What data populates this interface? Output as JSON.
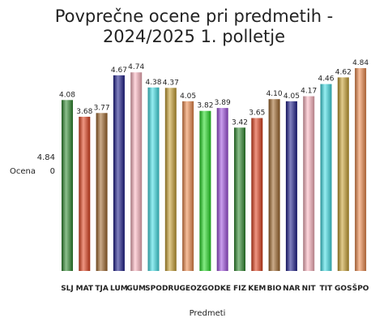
{
  "chart_data": {
    "type": "bar",
    "title_line1": "Povprečne ocene pri predmetih -",
    "title_line2": "2024/2025 1. polletje",
    "xlabel": "Predmeti",
    "ylabel": "Ocena",
    "y_top_label": "4.84",
    "y_bottom_label": "0",
    "ylim": [
      0,
      4.84
    ],
    "grid": false,
    "legend": "none",
    "categories": [
      "SLJ",
      "MAT",
      "TJA",
      "LUM",
      "GUM",
      "SPO",
      "DRU",
      "GEO",
      "ZGO",
      "DKE",
      "FIZ",
      "KEM",
      "BIO",
      "NAR",
      "NIT",
      "TIT",
      "GOS",
      "ŠPO"
    ],
    "values": [
      4.08,
      3.68,
      3.77,
      4.67,
      4.74,
      4.38,
      4.37,
      4.05,
      3.82,
      3.89,
      3.42,
      3.65,
      4.1,
      4.05,
      4.17,
      4.46,
      4.62,
      4.84
    ],
    "value_labels": [
      "4.08",
      "3.68",
      "3.77",
      "4.67",
      "4.74",
      "4.38",
      "4.37",
      "4.05",
      "3.82",
      "3.89",
      "3.42",
      "3.65",
      "4.10",
      "4.05",
      "4.17",
      "4.46",
      "4.62",
      "4.84"
    ],
    "colors": [
      "#2e8b2e",
      "#e2401c",
      "#a0672a",
      "#1c1c8c",
      "#ffb6c1",
      "#40e0e8",
      "#c8a030",
      "#f08a4b",
      "#22dd22",
      "#a050e0",
      "#2e8b2e",
      "#e2401c",
      "#a0672a",
      "#1c1c8c",
      "#ffb6c1",
      "#40e0e8",
      "#c8a030",
      "#f08a4b"
    ]
  }
}
